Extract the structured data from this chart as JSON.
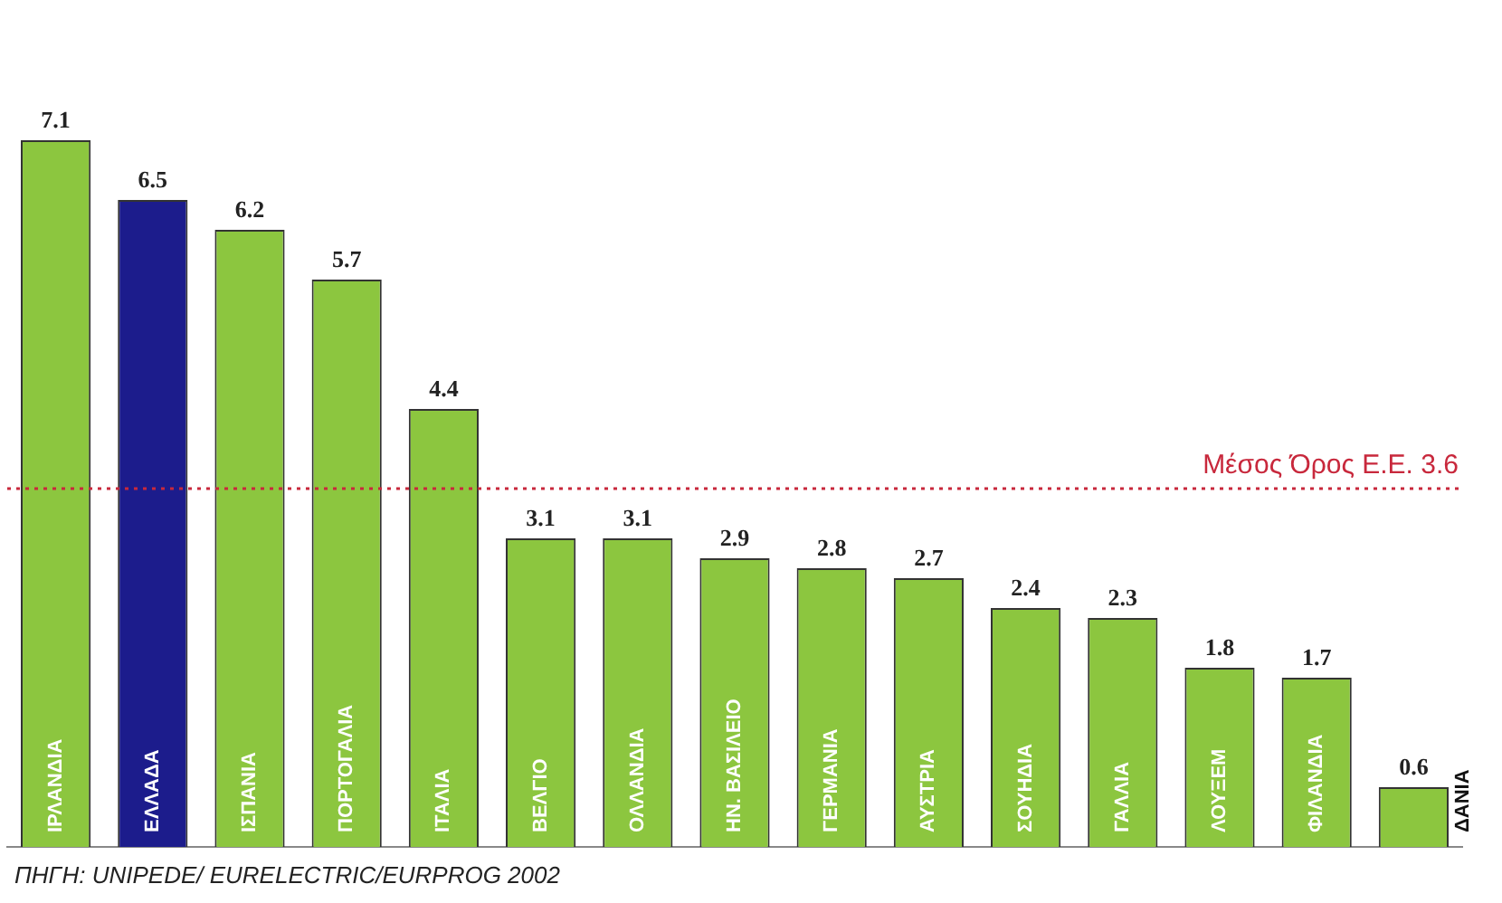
{
  "chart_data": {
    "type": "bar",
    "categories": [
      "ΙΡΛΑΝΔΙΑ",
      "ΕΛΛΑΔΑ",
      "ΙΣΠΑΝΙΑ",
      "ΠΟΡΤΟΓΑΛΙΑ",
      "ΙΤΑΛΙΑ",
      "ΒΕΛΓΙΟ",
      "ΟΛΛΑΝΔΙΑ",
      "ΗΝ. ΒΑΣΙΛΕΙΟ",
      "ΓΕΡΜΑΝΙΑ",
      "ΑΥΣΤΡΙΑ",
      "ΣΟΥΗΔΙΑ",
      "ΓΑΛΛΙΑ",
      "ΛΟΥΞΕΜ",
      "ΦΙΛΑΝΔΙΑ",
      "ΔΑΝΙΑ"
    ],
    "values": [
      7.1,
      6.5,
      6.2,
      5.7,
      4.4,
      3.1,
      3.1,
      2.9,
      2.8,
      2.7,
      2.4,
      2.3,
      1.8,
      1.7,
      0.6
    ],
    "colors": [
      "#8cc63f",
      "#1c1c8c",
      "#8cc63f",
      "#8cc63f",
      "#8cc63f",
      "#8cc63f",
      "#8cc63f",
      "#8cc63f",
      "#8cc63f",
      "#8cc63f",
      "#8cc63f",
      "#8cc63f",
      "#8cc63f",
      "#8cc63f",
      "#8cc63f"
    ],
    "data_labels": true,
    "grid": false,
    "legend": false,
    "ref_lines": [
      {
        "axis": "y",
        "value": 3.6,
        "label": "Μέσος Όρος Ε.Ε. 3.6",
        "color": "#c8283c",
        "line_style": "dotted"
      }
    ],
    "annotations": [
      "ΠΗΓΗ: UNIPEDE/ EURELECTRIC/EURPROG 2002"
    ]
  }
}
